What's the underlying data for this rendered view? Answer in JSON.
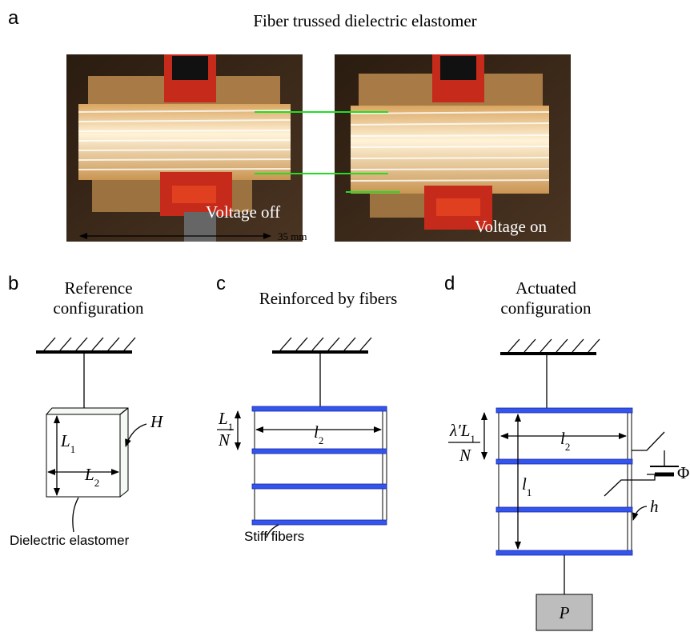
{
  "panel_a": {
    "label": "a",
    "title": "Fiber trussed dielectric elastomer",
    "photos": [
      {
        "caption": "Voltage off"
      },
      {
        "caption": "Voltage on"
      }
    ],
    "scale_bar": "35 mm"
  },
  "panel_b": {
    "label": "b",
    "title": [
      "Reference",
      "configuration"
    ],
    "height_symbol": "H",
    "length_1": {
      "symbol": "L",
      "subscript": "1"
    },
    "length_2": {
      "symbol": "L",
      "subscript": "2"
    },
    "material_label": "Dielectric elastomer"
  },
  "panel_c": {
    "label": "c",
    "title": "Reinforced by fibers",
    "spacing": {
      "numerator": {
        "symbol": "L",
        "subscript": "1"
      },
      "denominator": "N"
    },
    "width": {
      "symbol": "l",
      "subscript": "2"
    },
    "fiber_label": "Stiff fibers"
  },
  "panel_d": {
    "label": "d",
    "title": [
      "Actuated",
      "configuration"
    ],
    "spacing": {
      "numerator": {
        "prefix": "λ′",
        "symbol": "L",
        "subscript": "1"
      },
      "denominator": "N"
    },
    "width": {
      "symbol": "l",
      "subscript": "2"
    },
    "length": {
      "symbol": "l",
      "subscript": "1"
    },
    "voltage": "Φ",
    "thickness": "h",
    "load": "P"
  }
}
